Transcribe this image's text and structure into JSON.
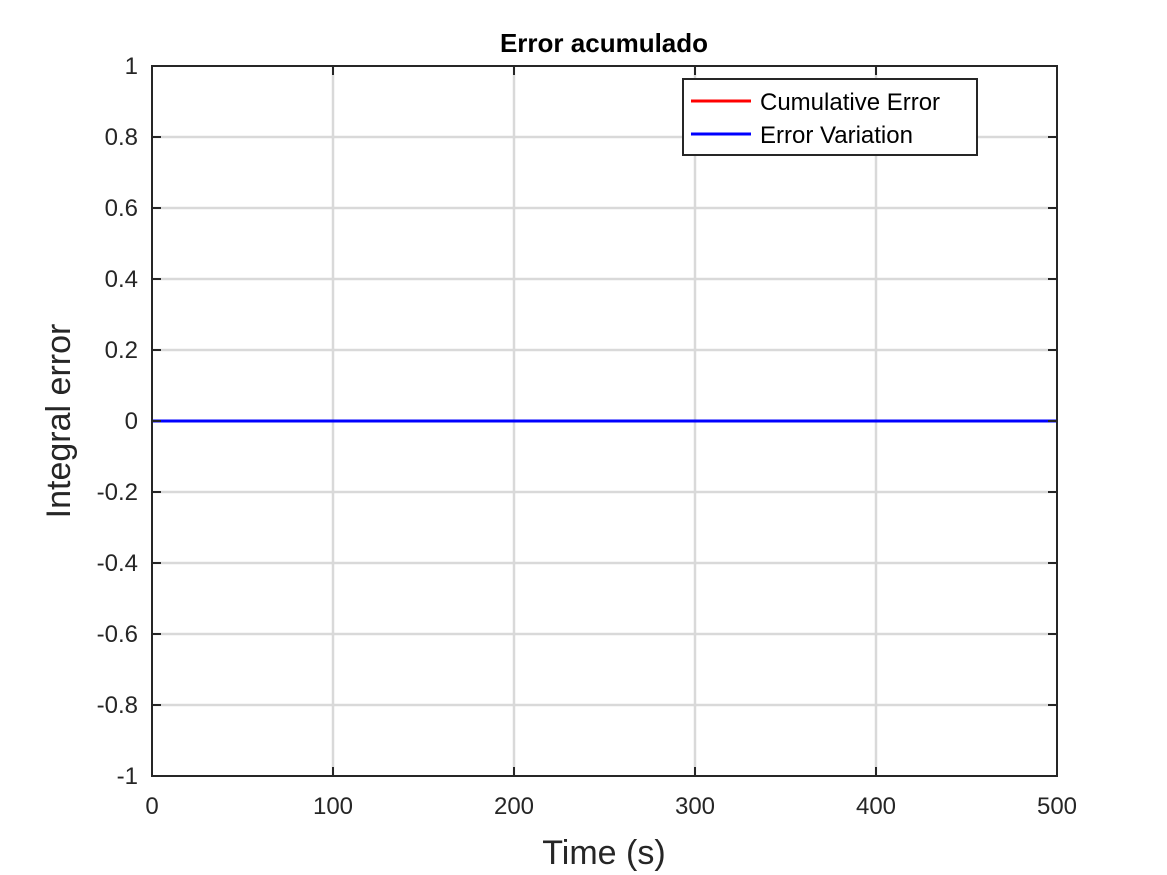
{
  "chart_data": {
    "type": "line",
    "title": "Error acumulado",
    "xlabel": "Time (s)",
    "ylabel": "Integral error",
    "xlim": [
      0,
      500
    ],
    "ylim": [
      -1,
      1
    ],
    "xticks": [
      0,
      100,
      200,
      300,
      400,
      500
    ],
    "yticks": [
      -1,
      -0.8,
      -0.6,
      -0.4,
      -0.2,
      0,
      0.2,
      0.4,
      0.6,
      0.8,
      1
    ],
    "xtick_labels": [
      "0",
      "100",
      "200",
      "300",
      "400",
      "500"
    ],
    "ytick_labels": [
      "-1",
      "-0.8",
      "-0.6",
      "-0.4",
      "-0.2",
      "0",
      "0.2",
      "0.4",
      "0.6",
      "0.8",
      "1"
    ],
    "grid": true,
    "legend_position": "top-right",
    "series": [
      {
        "name": "Cumulative Error",
        "color": "#ff0000",
        "x": [
          0,
          500
        ],
        "y": [
          0,
          0
        ]
      },
      {
        "name": "Error Variation",
        "color": "#0000ff",
        "x": [
          0,
          500
        ],
        "y": [
          0,
          0
        ]
      }
    ]
  }
}
